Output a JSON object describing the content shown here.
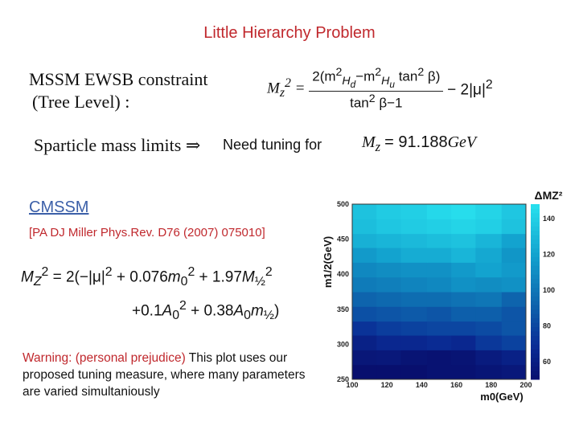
{
  "slide": {
    "title": "Little Hierarchy Problem",
    "constraint_line1": "MSSM EWSB constraint",
    "constraint_line2": "(Tree Level) :",
    "sparticle_text": "Sparticle mass limits ⇒",
    "need_tuning": "Need tuning for",
    "mz_value": "= 91.188",
    "mz_unit": "GeV",
    "cmssm": "CMSSM",
    "reference": "[PA DJ Miller Phys.Rev. D76 (2007) 075010]",
    "warning_red": "Warning:  (personal prejudice)",
    "warning_rest": " This plot uses our proposed tuning measure, where many parameters are varied simultaniously"
  },
  "chart_data": {
    "type": "heatmap",
    "xlabel": "m0(GeV)",
    "ylabel": "m1/2(GeV)",
    "colorbar_label": "ΔMZ²",
    "xlim": [
      100,
      200
    ],
    "ylim": [
      250,
      500
    ],
    "x_ticks": [
      100,
      120,
      140,
      160,
      180,
      200
    ],
    "y_ticks": [
      250,
      300,
      350,
      400,
      450,
      500
    ],
    "colorbar_ticks": [
      60,
      80,
      100,
      120,
      140
    ],
    "colorbar_range": [
      50,
      148
    ],
    "x_edges": [
      100,
      114,
      128,
      143,
      157,
      171,
      186,
      200
    ],
    "y_edges": [
      250,
      271,
      292,
      313,
      333,
      354,
      375,
      396,
      417,
      438,
      458,
      479,
      500
    ],
    "z": [
      [
        50,
        50,
        50,
        52,
        52,
        54,
        56
      ],
      [
        55,
        56,
        53,
        52,
        53,
        58,
        62
      ],
      [
        62,
        66,
        66,
        68,
        66,
        74,
        78
      ],
      [
        72,
        76,
        78,
        80,
        80,
        82,
        86
      ],
      [
        84,
        86,
        88,
        86,
        90,
        90,
        86
      ],
      [
        92,
        94,
        96,
        96,
        98,
        100,
        92
      ],
      [
        102,
        104,
        106,
        108,
        112,
        110,
        112
      ],
      [
        108,
        110,
        112,
        112,
        116,
        120,
        116
      ],
      [
        116,
        120,
        124,
        124,
        128,
        122,
        114
      ],
      [
        126,
        128,
        130,
        132,
        134,
        128,
        120
      ],
      [
        132,
        136,
        138,
        140,
        142,
        140,
        134
      ],
      [
        134,
        138,
        140,
        144,
        146,
        142,
        136
      ]
    ]
  }
}
